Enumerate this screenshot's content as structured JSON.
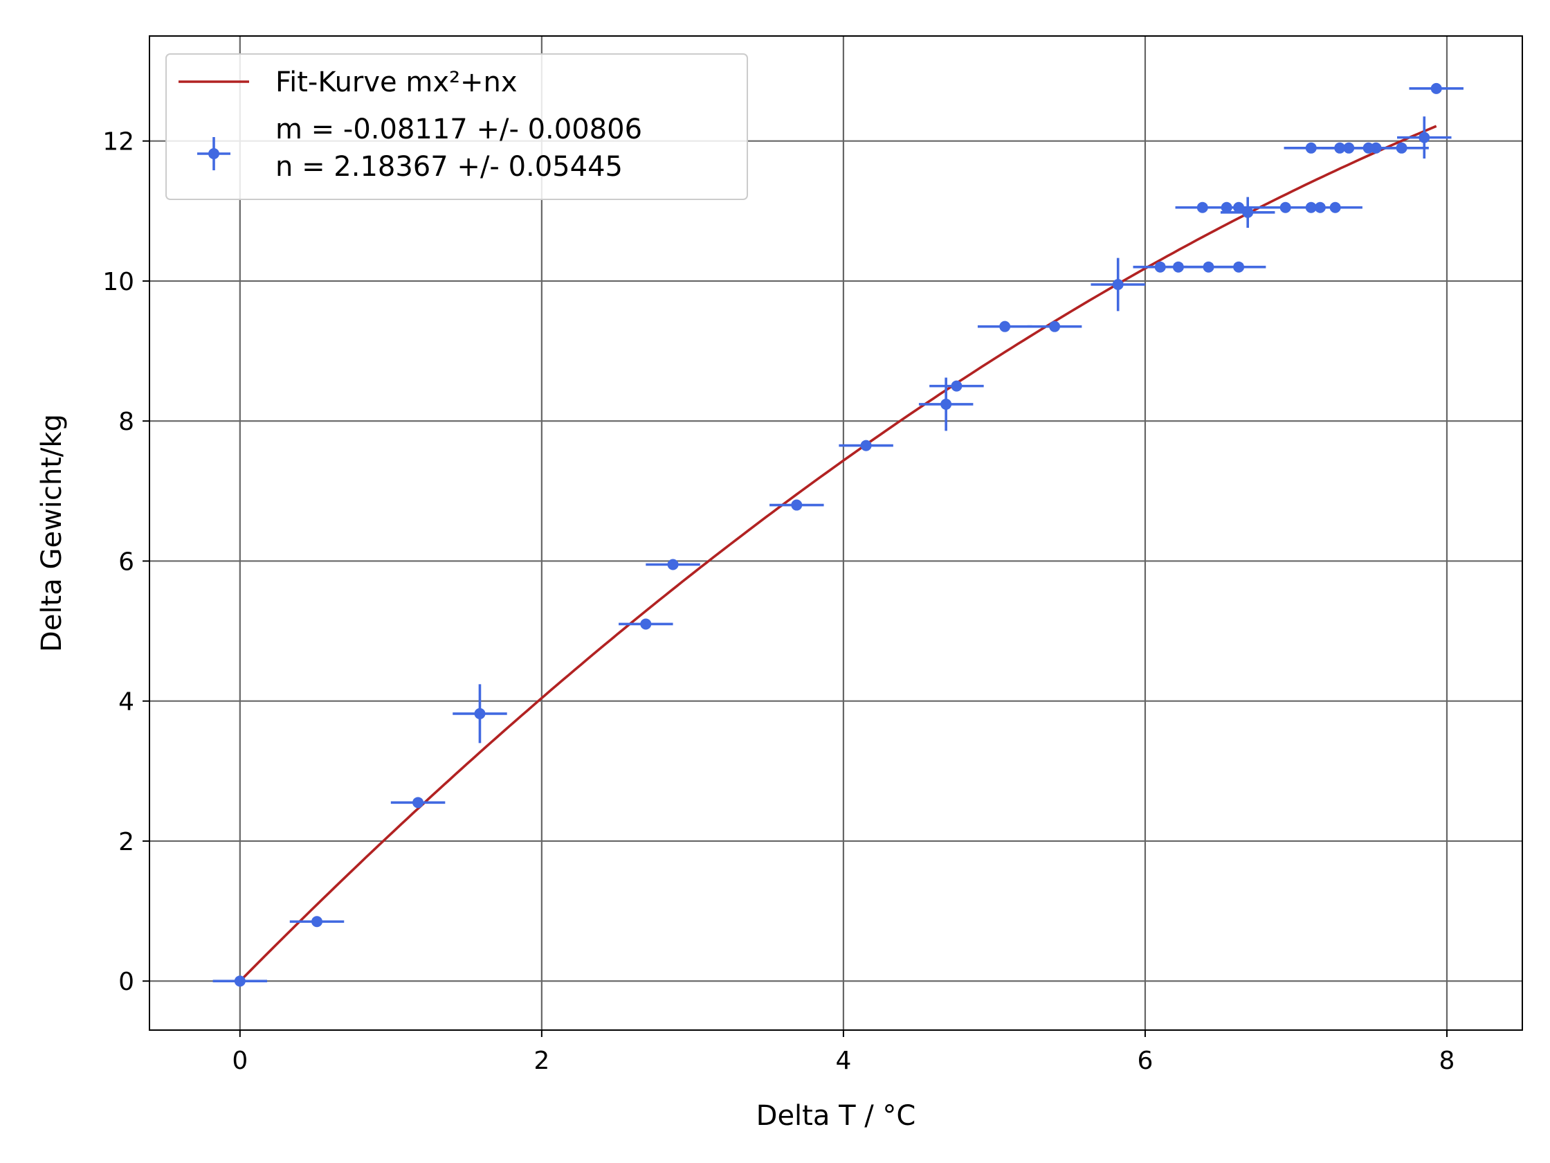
{
  "chart_data": {
    "type": "scatter",
    "xlabel": "Delta T / °C",
    "ylabel": "Delta Gewicht/kg",
    "xlim": [
      -0.6,
      8.5
    ],
    "ylim": [
      -0.7,
      13.5
    ],
    "xticks": [
      0,
      2,
      4,
      6,
      8
    ],
    "yticks": [
      0,
      2,
      4,
      6,
      8,
      10,
      12
    ],
    "grid": true,
    "legend_position": "top-left",
    "colors": {
      "fit": "#b22222",
      "data": "#4169e1",
      "grid": "#666666"
    },
    "fit": {
      "name": "Fit-Kurve mx²+nx",
      "m": -0.08117,
      "n": 2.18367,
      "x_range": [
        0,
        7.93
      ]
    },
    "series_legend": [
      "m = -0.08117 +/- 0.00806",
      "n = 2.18367 +/- 0.05445"
    ],
    "points": [
      {
        "x": 0.0,
        "y": 0.0,
        "xerr": 0.18,
        "yerr": 0.0
      },
      {
        "x": 0.51,
        "y": 0.85,
        "xerr": 0.18,
        "yerr": 0.0
      },
      {
        "x": 1.18,
        "y": 2.55,
        "xerr": 0.18,
        "yerr": 0.0
      },
      {
        "x": 1.59,
        "y": 3.82,
        "xerr": 0.18,
        "yerr": 0.42
      },
      {
        "x": 2.69,
        "y": 5.1,
        "xerr": 0.18,
        "yerr": 0.0
      },
      {
        "x": 2.87,
        "y": 5.95,
        "xerr": 0.18,
        "yerr": 0.0
      },
      {
        "x": 3.69,
        "y": 6.8,
        "xerr": 0.18,
        "yerr": 0.0
      },
      {
        "x": 4.15,
        "y": 7.65,
        "xerr": 0.18,
        "yerr": 0.0
      },
      {
        "x": 4.68,
        "y": 8.24,
        "xerr": 0.18,
        "yerr": 0.38
      },
      {
        "x": 4.75,
        "y": 8.5,
        "xerr": 0.18,
        "yerr": 0.0
      },
      {
        "x": 5.07,
        "y": 9.35,
        "xerr": 0.18,
        "yerr": 0.0
      },
      {
        "x": 5.4,
        "y": 9.35,
        "xerr": 0.18,
        "yerr": 0.0
      },
      {
        "x": 5.82,
        "y": 9.95,
        "xerr": 0.18,
        "yerr": 0.38
      },
      {
        "x": 6.1,
        "y": 10.2,
        "xerr": 0.18,
        "yerr": 0.0
      },
      {
        "x": 6.22,
        "y": 10.2,
        "xerr": 0.18,
        "yerr": 0.0
      },
      {
        "x": 6.42,
        "y": 10.2,
        "xerr": 0.18,
        "yerr": 0.0
      },
      {
        "x": 6.62,
        "y": 10.2,
        "xerr": 0.18,
        "yerr": 0.0
      },
      {
        "x": 6.38,
        "y": 11.05,
        "xerr": 0.18,
        "yerr": 0.0
      },
      {
        "x": 6.54,
        "y": 11.05,
        "xerr": 0.18,
        "yerr": 0.0
      },
      {
        "x": 6.62,
        "y": 11.05,
        "xerr": 0.18,
        "yerr": 0.0
      },
      {
        "x": 6.68,
        "y": 10.98,
        "xerr": 0.18,
        "yerr": 0.22
      },
      {
        "x": 6.93,
        "y": 11.05,
        "xerr": 0.18,
        "yerr": 0.0
      },
      {
        "x": 7.1,
        "y": 11.05,
        "xerr": 0.18,
        "yerr": 0.0
      },
      {
        "x": 7.16,
        "y": 11.05,
        "xerr": 0.18,
        "yerr": 0.0
      },
      {
        "x": 7.26,
        "y": 11.05,
        "xerr": 0.18,
        "yerr": 0.0
      },
      {
        "x": 7.1,
        "y": 11.9,
        "xerr": 0.18,
        "yerr": 0.0
      },
      {
        "x": 7.29,
        "y": 11.9,
        "xerr": 0.18,
        "yerr": 0.0
      },
      {
        "x": 7.35,
        "y": 11.9,
        "xerr": 0.18,
        "yerr": 0.0
      },
      {
        "x": 7.48,
        "y": 11.9,
        "xerr": 0.18,
        "yerr": 0.0
      },
      {
        "x": 7.53,
        "y": 11.9,
        "xerr": 0.18,
        "yerr": 0.0
      },
      {
        "x": 7.7,
        "y": 11.9,
        "xerr": 0.18,
        "yerr": 0.0
      },
      {
        "x": 7.85,
        "y": 12.05,
        "xerr": 0.18,
        "yerr": 0.3
      },
      {
        "x": 7.93,
        "y": 12.75,
        "xerr": 0.18,
        "yerr": 0.0
      }
    ]
  }
}
